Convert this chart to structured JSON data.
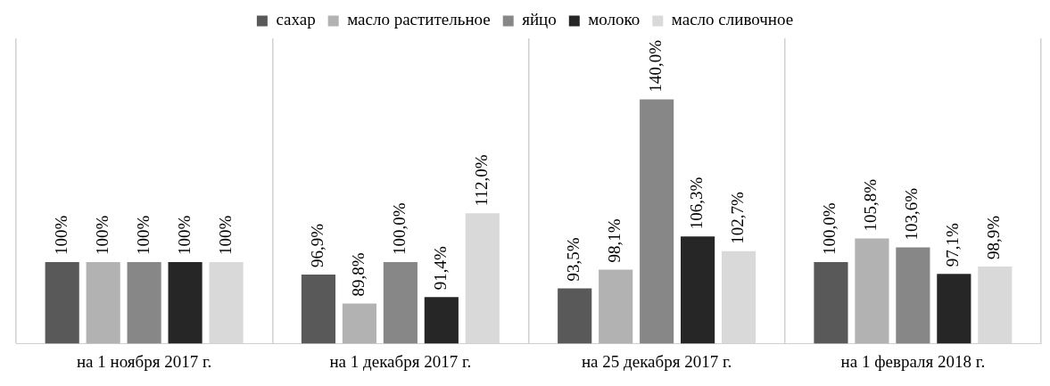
{
  "chart_data": {
    "type": "bar",
    "categories": [
      "на 1 ноября 2017 г.",
      "на 1 декабря 2017 г.",
      "на 25 декабря 2017 г.",
      "на 1 февраля 2018 г."
    ],
    "series": [
      {
        "name": "сахар",
        "color": "#595959",
        "values": [
          100,
          96.9,
          93.5,
          100
        ],
        "value_labels": [
          "100%",
          "96,9%",
          "93,5%",
          "100,0%"
        ]
      },
      {
        "name": "масло растительное",
        "color": "#b2b2b2",
        "values": [
          100,
          89.8,
          98.1,
          105.8
        ],
        "value_labels": [
          "100%",
          "89,8%",
          "98,1%",
          "105,8%"
        ]
      },
      {
        "name": "яйцо",
        "color": "#878787",
        "values": [
          100,
          100,
          140,
          103.6
        ],
        "value_labels": [
          "100%",
          "100,0%",
          "140,0%",
          "103,6%"
        ]
      },
      {
        "name": "молоко",
        "color": "#262626",
        "values": [
          100,
          91.4,
          106.3,
          97.1
        ],
        "value_labels": [
          "100%",
          "91,4%",
          "106,3%",
          "97,1%"
        ]
      },
      {
        "name": "масло сливочное",
        "color": "#d9d9d9",
        "values": [
          100,
          112,
          102.7,
          98.9
        ],
        "value_labels": [
          "100%",
          "112,0%",
          "102,7%",
          "98,9%"
        ]
      }
    ],
    "ylim": [
      80,
      155
    ],
    "tick_labels": "x",
    "grid": "x",
    "legend": "top"
  }
}
